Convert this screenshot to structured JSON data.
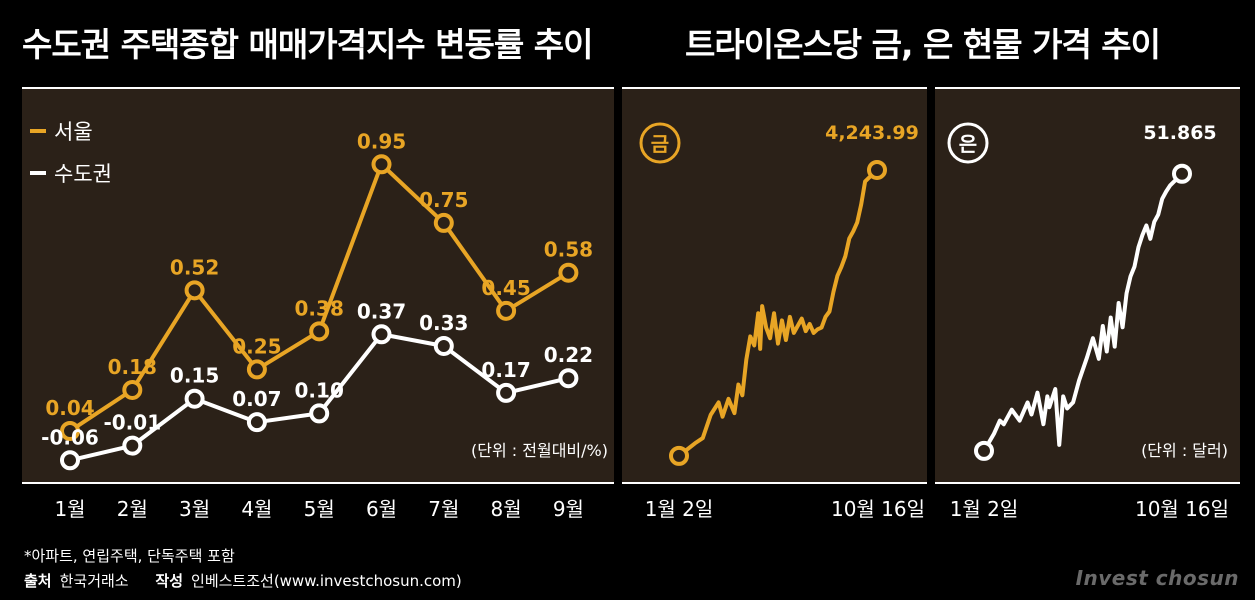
{
  "colors": {
    "gold": "#e8a525",
    "white": "#ffffff",
    "panel": "#2b2118",
    "axis": "#ffffff"
  },
  "left": {
    "title": "수도권 주택종합 매매가격지수 변동률 추이",
    "unit": "(단위 : 전월대비/%)",
    "footnote": "*아파트, 연립주택, 단독주택 포함",
    "source_label": "출처",
    "source": "한국거래소",
    "author_label": "작성",
    "author": "인베스트조선(www.investchosun.com)"
  },
  "right": {
    "title": "트라이온스당 금, 은 현물 가격 추이",
    "gold_badge": "금",
    "silver_badge": "은",
    "gold_last_label": "4,243.99",
    "silver_last_label": "51.865",
    "unit": "(단위 : 달러)",
    "x_start": "1월 2일",
    "x_end": "10월 16일"
  },
  "brand": "Invest chosun",
  "chart_data": [
    {
      "type": "line",
      "title": "수도권 주택종합 매매가격지수 변동률 추이",
      "categories": [
        "1월",
        "2월",
        "3월",
        "4월",
        "5월",
        "6월",
        "7월",
        "8월",
        "9월"
      ],
      "series": [
        {
          "name": "서울",
          "color": "#e8a525",
          "values": [
            0.04,
            0.18,
            0.52,
            0.25,
            0.38,
            0.95,
            0.75,
            0.45,
            0.58
          ],
          "labels": [
            "0.04",
            "0.18",
            "0.52",
            "0.25",
            "0.38",
            "0.95",
            "0.75",
            "0.45",
            "0.58"
          ]
        },
        {
          "name": "수도권",
          "color": "#ffffff",
          "values": [
            -0.06,
            -0.01,
            0.15,
            0.07,
            0.1,
            0.37,
            0.33,
            0.17,
            0.22
          ],
          "labels": [
            "-0.06",
            "-0.01",
            "0.15",
            "0.07",
            "0.10",
            "0.37",
            "0.33",
            "0.17",
            "0.22"
          ]
        }
      ],
      "ylim": [
        -0.1,
        1.05
      ],
      "ylabel": "(단위 : 전월대비/%)",
      "legend": "top-left"
    },
    {
      "type": "line",
      "title": "금",
      "x": [
        0,
        0.08,
        0.12,
        0.16,
        0.2,
        0.22,
        0.25,
        0.28,
        0.3,
        0.32,
        0.34,
        0.36,
        0.38,
        0.4,
        0.41,
        0.42,
        0.44,
        0.46,
        0.48,
        0.5,
        0.52,
        0.54,
        0.56,
        0.58,
        0.6,
        0.62,
        0.64,
        0.66,
        0.68,
        0.7,
        0.72,
        0.74,
        0.76,
        0.78,
        0.8,
        0.82,
        0.84,
        0.86,
        0.88,
        0.9,
        0.92,
        0.94,
        1.0
      ],
      "values": [
        2640,
        2710,
        2740,
        2870,
        2940,
        2860,
        2960,
        2880,
        3040,
        2980,
        3180,
        3310,
        3260,
        3440,
        3240,
        3480,
        3360,
        3300,
        3440,
        3270,
        3400,
        3290,
        3420,
        3330,
        3370,
        3410,
        3340,
        3380,
        3330,
        3350,
        3360,
        3420,
        3450,
        3560,
        3650,
        3700,
        3760,
        3860,
        3900,
        3950,
        4050,
        4180,
        4243.99
      ],
      "ylim": [
        2600,
        4300
      ],
      "x_start_label": "1월 2일",
      "x_end_label": "10월 16일",
      "last_label": "4,243.99"
    },
    {
      "type": "line",
      "title": "은",
      "x": [
        0,
        0.05,
        0.08,
        0.1,
        0.14,
        0.18,
        0.22,
        0.24,
        0.27,
        0.3,
        0.32,
        0.33,
        0.36,
        0.38,
        0.4,
        0.42,
        0.45,
        0.48,
        0.52,
        0.55,
        0.58,
        0.6,
        0.62,
        0.64,
        0.66,
        0.68,
        0.7,
        0.72,
        0.74,
        0.76,
        0.78,
        0.8,
        0.82,
        0.84,
        0.86,
        0.88,
        0.9,
        0.92,
        0.94,
        1.0
      ],
      "values": [
        29.0,
        30.4,
        31.5,
        31.2,
        32.4,
        31.5,
        33.0,
        32.0,
        33.8,
        31.2,
        33.5,
        32.6,
        34.1,
        29.5,
        33.5,
        32.5,
        33.0,
        34.8,
        36.7,
        38.3,
        36.6,
        39.3,
        37.2,
        40.0,
        37.6,
        41.2,
        39.2,
        42.0,
        43.4,
        44.2,
        45.8,
        46.8,
        47.6,
        46.5,
        47.9,
        48.5,
        49.8,
        50.4,
        50.9,
        51.865
      ],
      "ylim": [
        28,
        53
      ],
      "x_start_label": "1월 2일",
      "x_end_label": "10월 16일",
      "last_label": "51.865"
    }
  ]
}
